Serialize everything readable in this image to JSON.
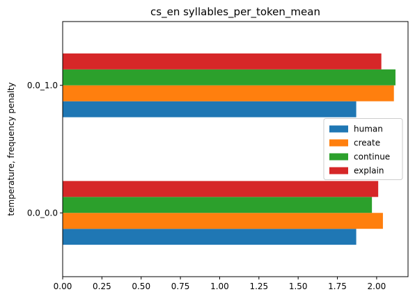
{
  "chart_data": {
    "type": "bar",
    "orientation": "horizontal",
    "title": "cs_en syllables_per_token_mean",
    "xlabel": "",
    "ylabel": "temperature, frequency penalty",
    "categories": [
      "0.0_0.0",
      "0.0_1.0"
    ],
    "xlim": [
      0,
      2.2
    ],
    "xticks": [
      0.0,
      0.25,
      0.5,
      0.75,
      1.0,
      1.25,
      1.5,
      1.75,
      2.0
    ],
    "xtick_labels": [
      "0.00",
      "0.25",
      "0.50",
      "0.75",
      "1.00",
      "1.25",
      "1.50",
      "1.75",
      "2.00"
    ],
    "grid": false,
    "legend": {
      "placement": "center-right"
    },
    "series": [
      {
        "name": "human",
        "color": "#1f77b4",
        "values": [
          1.87,
          1.87
        ]
      },
      {
        "name": "create",
        "color": "#ff7f0e",
        "values": [
          2.04,
          2.11
        ]
      },
      {
        "name": "continue",
        "color": "#2ca02c",
        "values": [
          1.97,
          2.12
        ]
      },
      {
        "name": "explain",
        "color": "#d62728",
        "values": [
          2.01,
          2.03
        ]
      }
    ]
  }
}
